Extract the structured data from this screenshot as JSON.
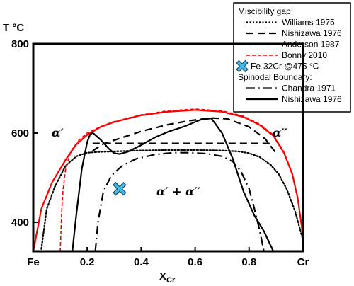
{
  "chart_data": {
    "type": "line",
    "title": "",
    "xlabel": "X",
    "xlabel_sub": "Cr",
    "ylabel": "T °C",
    "xlim": [
      0,
      1
    ],
    "ylim": [
      335,
      800
    ],
    "x_ticks": [
      {
        "value": 0,
        "label": "Fe"
      },
      {
        "value": 0.2,
        "label": "0.2"
      },
      {
        "value": 0.4,
        "label": "0.4"
      },
      {
        "value": 0.6,
        "label": "0.6"
      },
      {
        "value": 0.8,
        "label": "0.8"
      },
      {
        "value": 1,
        "label": "Cr"
      }
    ],
    "y_ticks": [
      {
        "value": 400,
        "label": "400"
      },
      {
        "value": 600,
        "label": "600"
      },
      {
        "value": 800,
        "label": "800"
      }
    ],
    "grid": false,
    "legend_position": "top-right",
    "annotations": [
      {
        "text": "α′",
        "x": 0.1,
        "y": 598
      },
      {
        "text": "α′′",
        "x": 0.9,
        "y": 598
      },
      {
        "text": "α′ + α′′",
        "x": 0.5,
        "y": 465
      }
    ],
    "legend": {
      "groups": [
        {
          "heading": "Miscibility gap:",
          "entries": [
            0,
            1,
            2,
            3,
            4
          ]
        },
        {
          "heading": "Spinodal Boundary:",
          "entries": [
            5,
            6
          ]
        }
      ]
    },
    "series": [
      {
        "name": "Williams 1975",
        "style": "dotted",
        "color": "#000000",
        "x": [
          0.03,
          0.05,
          0.08,
          0.12,
          0.16,
          0.2,
          0.25,
          0.3,
          0.4,
          0.5,
          0.6,
          0.7,
          0.76,
          0.8,
          0.84,
          0.88,
          0.91,
          0.94,
          0.97,
          1.0
        ],
        "y": [
          340,
          430,
          480,
          527,
          548,
          556,
          558,
          559,
          561,
          562,
          562,
          561,
          559,
          555,
          546,
          529,
          508,
          474,
          426,
          360
        ]
      },
      {
        "name": "Nishizawa 1976",
        "style": "dashed",
        "color": "#000000",
        "x": [
          0.22,
          0.26,
          0.3,
          0.4,
          0.5,
          0.58,
          0.66,
          0.72,
          0.8,
          0.86,
          0.9
        ],
        "y": [
          560,
          576,
          584,
          604,
          619,
          628,
          634,
          632,
          614,
          587,
          555
        ]
      },
      {
        "name": "Anderson 1987",
        "style": "solid",
        "color": "#ff0000",
        "x": [
          0.0,
          0.03,
          0.07,
          0.12,
          0.16,
          0.2,
          0.25,
          0.3,
          0.4,
          0.5,
          0.6,
          0.7,
          0.78,
          0.84,
          0.89,
          0.93,
          0.96,
          0.98,
          1.0
        ],
        "y": [
          335,
          430,
          490,
          540,
          575,
          596,
          614,
          625,
          640,
          648,
          652,
          648,
          636,
          618,
          594,
          555,
          508,
          455,
          370
        ]
      },
      {
        "name": "Bonny 2010",
        "style": "dash-short",
        "color": "#ff0000",
        "x": [
          0.1,
          0.105,
          0.11,
          0.12,
          0.14,
          0.17,
          0.2,
          0.25,
          0.3,
          0.4,
          0.5,
          0.6,
          0.7,
          0.78,
          0.84,
          0.89,
          0.93,
          0.96,
          0.98,
          1.0
        ],
        "y": [
          335,
          420,
          470,
          520,
          560,
          585,
          600,
          615,
          626,
          641,
          650,
          654,
          650,
          638,
          620,
          596,
          557,
          510,
          455,
          370
        ]
      },
      {
        "name": "Fe-32Cr @475 °C",
        "style": "marker",
        "color": "#44b8e8",
        "x": [
          0.32
        ],
        "y": [
          475
        ]
      },
      {
        "name": "Chandra 1971",
        "style": "dashdot",
        "color": "#000000",
        "x": [
          0.23,
          0.24,
          0.26,
          0.29,
          0.33,
          0.38,
          0.45,
          0.52,
          0.58,
          0.64,
          0.7,
          0.74,
          0.77,
          0.8,
          0.82,
          0.84,
          0.855
        ],
        "y": [
          335,
          400,
          470,
          505,
          527,
          542,
          552,
          556,
          556,
          554,
          548,
          536,
          514,
          475,
          430,
          380,
          335
        ]
      },
      {
        "name": "Nishizawa 1976",
        "style": "solid",
        "color": "#000000",
        "x": [
          0.145,
          0.16,
          0.18,
          0.2,
          0.21,
          0.22,
          0.25,
          0.28,
          0.3,
          0.32,
          0.35,
          0.4,
          0.45,
          0.5,
          0.56,
          0.62,
          0.66,
          0.7,
          0.74,
          0.78,
          0.82,
          0.855,
          0.89
        ],
        "y": [
          335,
          420,
          520,
          580,
          596,
          601,
          585,
          565,
          555,
          553,
          558,
          573,
          590,
          603,
          615,
          630,
          633,
          600,
          542,
          468,
          415,
          380,
          335
        ]
      },
      {
        "name": "",
        "style": "dashed-tie",
        "color": "#000000",
        "x": [
          0.22,
          0.88
        ],
        "y": [
          577,
          577
        ]
      }
    ]
  }
}
